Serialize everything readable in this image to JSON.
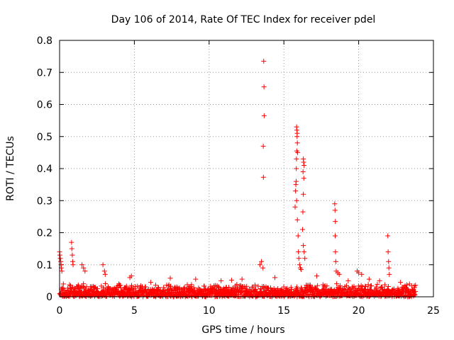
{
  "chart_data": {
    "type": "scatter",
    "title": "Day 106 of 2014, Rate Of TEC Index for receiver pdel",
    "xlabel": "GPS time / hours",
    "ylabel": "ROTI / TECUs",
    "xlim": [
      0,
      25
    ],
    "ylim": [
      0,
      0.8
    ],
    "x_ticks": [
      "0",
      "5",
      "10",
      "15",
      "20",
      "25"
    ],
    "y_ticks": [
      "0",
      "0.1",
      "0.2",
      "0.3",
      "0.4",
      "0.5",
      "0.6",
      "0.7",
      "0.8"
    ],
    "x_tick_values": [
      0,
      5,
      10,
      15,
      20,
      25
    ],
    "y_tick_values": [
      0,
      0.1,
      0.2,
      0.3,
      0.4,
      0.5,
      0.6,
      0.7,
      0.8
    ],
    "grid": true,
    "marker": "+",
    "color": "#ff0000",
    "series": [
      {
        "points": [
          [
            0.0,
            0.14
          ],
          [
            0.02,
            0.13
          ],
          [
            0.05,
            0.12
          ],
          [
            0.08,
            0.11
          ],
          [
            0.1,
            0.1
          ],
          [
            0.12,
            0.09
          ],
          [
            0.15,
            0.08
          ],
          [
            0.8,
            0.17
          ],
          [
            0.82,
            0.15
          ],
          [
            0.85,
            0.13
          ],
          [
            0.88,
            0.11
          ],
          [
            0.9,
            0.1
          ],
          [
            1.5,
            0.1
          ],
          [
            1.6,
            0.09
          ],
          [
            1.7,
            0.08
          ],
          [
            2.9,
            0.1
          ],
          [
            3.0,
            0.08
          ],
          [
            3.05,
            0.07
          ],
          [
            4.7,
            0.06
          ],
          [
            4.8,
            0.065
          ],
          [
            13.4,
            0.1
          ],
          [
            13.5,
            0.11
          ],
          [
            13.6,
            0.09
          ],
          [
            13.65,
            0.735
          ],
          [
            13.67,
            0.655
          ],
          [
            13.68,
            0.565
          ],
          [
            13.62,
            0.47
          ],
          [
            13.63,
            0.373
          ],
          [
            15.85,
            0.53
          ],
          [
            15.87,
            0.52
          ],
          [
            15.89,
            0.51
          ],
          [
            15.88,
            0.5
          ],
          [
            15.9,
            0.48
          ],
          [
            15.86,
            0.455
          ],
          [
            15.92,
            0.45
          ],
          [
            15.84,
            0.43
          ],
          [
            15.83,
            0.4
          ],
          [
            15.82,
            0.36
          ],
          [
            15.8,
            0.35
          ],
          [
            15.78,
            0.33
          ],
          [
            15.85,
            0.3
          ],
          [
            15.75,
            0.28
          ],
          [
            15.9,
            0.24
          ],
          [
            15.95,
            0.19
          ],
          [
            15.97,
            0.14
          ],
          [
            16.0,
            0.12
          ],
          [
            16.05,
            0.1
          ],
          [
            16.1,
            0.09
          ],
          [
            16.15,
            0.085
          ],
          [
            16.3,
            0.43
          ],
          [
            16.32,
            0.42
          ],
          [
            16.35,
            0.41
          ],
          [
            16.28,
            0.39
          ],
          [
            16.33,
            0.37
          ],
          [
            16.3,
            0.32
          ],
          [
            16.27,
            0.265
          ],
          [
            16.25,
            0.21
          ],
          [
            16.3,
            0.16
          ],
          [
            16.35,
            0.14
          ],
          [
            16.4,
            0.12
          ],
          [
            18.4,
            0.29
          ],
          [
            18.42,
            0.27
          ],
          [
            18.44,
            0.235
          ],
          [
            18.43,
            0.19
          ],
          [
            18.45,
            0.14
          ],
          [
            18.47,
            0.11
          ],
          [
            18.5,
            0.08
          ],
          [
            18.6,
            0.075
          ],
          [
            18.7,
            0.07
          ],
          [
            19.9,
            0.08
          ],
          [
            20.0,
            0.075
          ],
          [
            20.2,
            0.07
          ],
          [
            21.95,
            0.19
          ],
          [
            21.97,
            0.14
          ],
          [
            22.0,
            0.11
          ],
          [
            22.02,
            0.09
          ],
          [
            22.05,
            0.07
          ],
          [
            12.2,
            0.055
          ],
          [
            10.8,
            0.05
          ],
          [
            9.1,
            0.055
          ],
          [
            7.4,
            0.058
          ],
          [
            6.1,
            0.045
          ],
          [
            11.5,
            0.052
          ],
          [
            14.4,
            0.06
          ],
          [
            17.2,
            0.065
          ],
          [
            19.3,
            0.05
          ],
          [
            20.7,
            0.055
          ],
          [
            21.4,
            0.05
          ],
          [
            22.8,
            0.045
          ],
          [
            23.4,
            0.04
          ]
        ]
      }
    ],
    "background_band": {
      "x": [
        0,
        23.8
      ],
      "y_min": 0.0,
      "y_max_typical": 0.035
    }
  }
}
